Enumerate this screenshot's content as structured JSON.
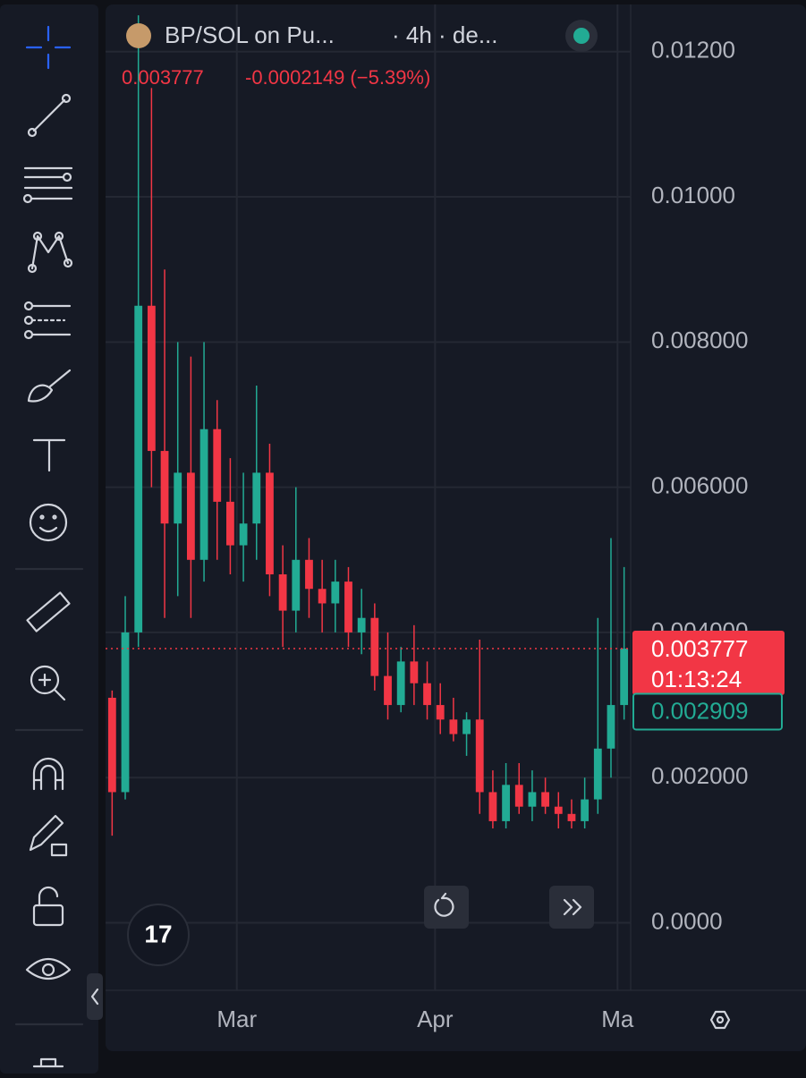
{
  "header": {
    "symbol": "BP/SOL on Pu...",
    "interval": "· 4h · de...",
    "last": "0.003777",
    "change": "-0.0002149 (−5.39%)"
  },
  "chart_data": {
    "type": "candlestick",
    "up_color": "#22ab94",
    "down_color": "#f23645",
    "grid": true,
    "xlim": [
      0,
      40
    ],
    "xticks": [
      {
        "value": 10,
        "label": "Mar"
      },
      {
        "value": 25.1,
        "label": "Apr"
      },
      {
        "value": 39,
        "label": "Ma"
      }
    ],
    "ylim": [
      -0.00093,
      0.01265
    ],
    "yticks": [
      {
        "value": 0.012,
        "label": "0.01200"
      },
      {
        "value": 0.01,
        "label": "0.01000"
      },
      {
        "value": 0.008,
        "label": "0.008000"
      },
      {
        "value": 0.006,
        "label": "0.006000"
      },
      {
        "value": 0.004,
        "label": "0.004000"
      },
      {
        "value": 0.002,
        "label": "0.002000"
      },
      {
        "value": 0,
        "label": "0.0000"
      }
    ],
    "open": [
      0.0031,
      0.0018,
      0.004,
      0.0085,
      0.0065,
      0.0055,
      0.0062,
      0.005,
      0.0068,
      0.0058,
      0.0052,
      0.0055,
      0.0062,
      0.0048,
      0.0043,
      0.005,
      0.0046,
      0.0044,
      0.0047,
      0.004,
      0.0042,
      0.0034,
      0.003,
      0.0036,
      0.0033,
      0.003,
      0.0028,
      0.0026,
      0.0028,
      0.0018,
      0.0014,
      0.0019,
      0.0016,
      0.0018,
      0.0016,
      0.0015,
      0.0014,
      0.0017,
      0.0024,
      0.003
    ],
    "high": [
      0.0032,
      0.0045,
      0.0125,
      0.0115,
      0.009,
      0.008,
      0.0078,
      0.008,
      0.0072,
      0.0064,
      0.0062,
      0.0074,
      0.0066,
      0.0052,
      0.006,
      0.0053,
      0.005,
      0.005,
      0.0049,
      0.0046,
      0.0044,
      0.004,
      0.0038,
      0.0041,
      0.0036,
      0.0033,
      0.0031,
      0.0029,
      0.0039,
      0.0021,
      0.0022,
      0.0022,
      0.0021,
      0.002,
      0.0018,
      0.0017,
      0.002,
      0.0042,
      0.0053,
      0.0049
    ],
    "low": [
      0.0012,
      0.0017,
      0.0038,
      0.006,
      0.0042,
      0.0045,
      0.0042,
      0.0047,
      0.005,
      0.0048,
      0.0047,
      0.005,
      0.0045,
      0.0038,
      0.004,
      0.0042,
      0.004,
      0.004,
      0.0038,
      0.0037,
      0.0032,
      0.0028,
      0.0029,
      0.003,
      0.0028,
      0.0026,
      0.0025,
      0.0023,
      0.0015,
      0.0013,
      0.0013,
      0.0015,
      0.0014,
      0.0015,
      0.0013,
      0.0013,
      0.0013,
      0.0015,
      0.002,
      0.0028
    ],
    "close": [
      0.0018,
      0.004,
      0.0085,
      0.0065,
      0.0055,
      0.0062,
      0.005,
      0.0068,
      0.0058,
      0.0052,
      0.0055,
      0.0062,
      0.0048,
      0.0043,
      0.005,
      0.0046,
      0.0044,
      0.0047,
      0.004,
      0.0042,
      0.0034,
      0.003,
      0.0036,
      0.0033,
      0.003,
      0.0028,
      0.0026,
      0.0028,
      0.0018,
      0.0014,
      0.0019,
      0.0016,
      0.0018,
      0.0016,
      0.0015,
      0.0014,
      0.0017,
      0.0024,
      0.003,
      0.003777
    ],
    "last_price": {
      "value": 0.003777,
      "label": "0.003777"
    },
    "countdown": "01:13:24",
    "marker_price": {
      "value": 0.002909,
      "label": "0.002909"
    }
  }
}
